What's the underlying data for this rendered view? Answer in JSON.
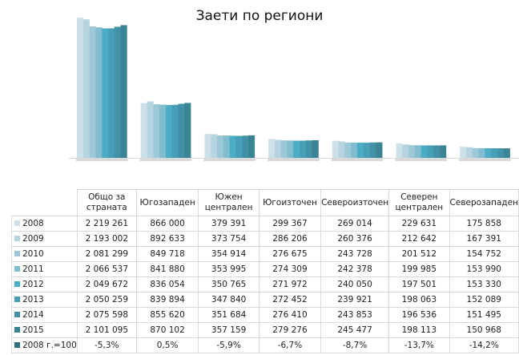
{
  "chart_data": {
    "type": "bar",
    "title": "Заети по региони",
    "categories": [
      "Общо за страната",
      "Югозападен",
      "Южен централен",
      "Югоизточен",
      "Североизточен",
      "Северен централен",
      "Северозападен"
    ],
    "series": [
      {
        "name": "2008",
        "color": "#cde0e8",
        "values": [
          "2 219 261",
          "866 000",
          "379 391",
          "299 367",
          "269 014",
          "229 631",
          "175 858"
        ]
      },
      {
        "name": "2009",
        "color": "#b6d4df",
        "values": [
          "2 193 002",
          "892 633",
          "373 754",
          "286 206",
          "260 376",
          "212 642",
          "167 391"
        ]
      },
      {
        "name": "2010",
        "color": "#9dc8d6",
        "values": [
          "2 081 299",
          "849 718",
          "354 914",
          "276 675",
          "243 728",
          "201 512",
          "154 752"
        ]
      },
      {
        "name": "2011",
        "color": "#82bccf",
        "values": [
          "2 066 537",
          "841 880",
          "353 995",
          "274 309",
          "242 378",
          "199 985",
          "153 990"
        ]
      },
      {
        "name": "2012",
        "color": "#4bacc6",
        "values": [
          "2 049 672",
          "836 054",
          "350 765",
          "271 972",
          "240 050",
          "197 501",
          "153 330"
        ]
      },
      {
        "name": "2013",
        "color": "#469fb6",
        "values": [
          "2 050 259",
          "839 894",
          "347 840",
          "272 452",
          "239 921",
          "198 063",
          "152 089"
        ]
      },
      {
        "name": "2014",
        "color": "#4192a6",
        "values": [
          "2 075 598",
          "855 620",
          "351 684",
          "276 410",
          "243 853",
          "196 536",
          "151 495"
        ]
      },
      {
        "name": "2015",
        "color": "#3b8494",
        "values": [
          "2 101 095",
          "870 102",
          "357 159",
          "279 276",
          "245 477",
          "198 113",
          "150 968"
        ]
      },
      {
        "name": "2008 г.=100",
        "color": "#31707e",
        "values": [
          "-5,3%",
          "0,5%",
          "-5,9%",
          "-6,7%",
          "-8,7%",
          "-13,7%",
          "-14,2%"
        ]
      }
    ],
    "ylim": [
      0,
      2220000
    ],
    "grid": false,
    "legend": "data-table"
  }
}
